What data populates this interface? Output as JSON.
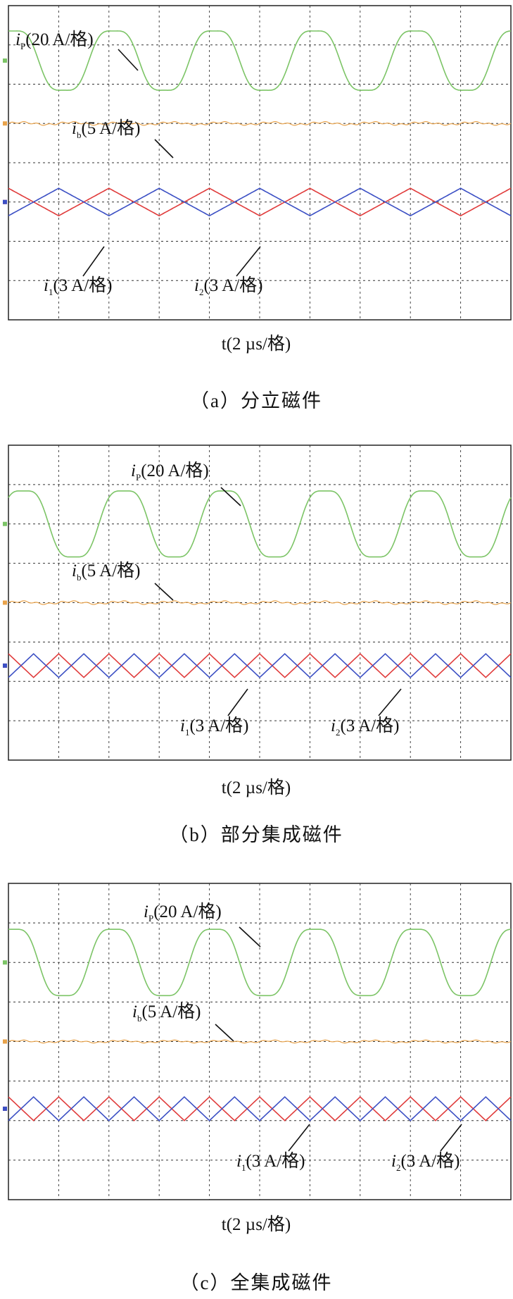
{
  "chart_data": [
    {
      "type": "line",
      "caption": "（a）分立磁件",
      "xlabel": "t(2 µs/格)",
      "grid": true,
      "divisions": {
        "x": 10,
        "y": 8
      },
      "series": [
        {
          "name": "iP(20 A/格)",
          "label_var": "i",
          "label_sub": "P",
          "label_rest": "(20 A/格)",
          "color": "#7cc466",
          "waveform": "sine_notched",
          "amplitude_div": 0.9,
          "offset_div": 1.4,
          "cycles": 5,
          "phase": 0.2
        },
        {
          "name": "ib(5 A/格)",
          "label_var": "i",
          "label_sub": "b",
          "label_rest": "(5 A/格)",
          "color": "#e8a24a",
          "waveform": "ripple",
          "amplitude_div": 0.05,
          "offset_div": 3.0,
          "cycles": 10,
          "phase": 0
        },
        {
          "name": "i1(3 A/格)",
          "label_var": "i",
          "label_sub": "1",
          "label_rest": "(3 A/格)",
          "color": "#e03b3b",
          "waveform": "triangle",
          "amplitude_div": 0.35,
          "offset_div": 5.0,
          "cycles": 5,
          "phase": 0.5
        },
        {
          "name": "i2(3 A/格)",
          "label_var": "i",
          "label_sub": "2",
          "label_rest": "(3 A/格)",
          "color": "#3b4fc4",
          "waveform": "triangle",
          "amplitude_div": 0.35,
          "offset_div": 5.0,
          "cycles": 5,
          "phase": 0
        }
      ]
    },
    {
      "type": "line",
      "caption": "（b）部分集成磁件",
      "xlabel": "t(2 µs/格)",
      "grid": true,
      "divisions": {
        "x": 10,
        "y": 8
      },
      "series": [
        {
          "name": "iP(20 A/格)",
          "label_var": "i",
          "label_sub": "P",
          "label_rest": "(20 A/格)",
          "color": "#7cc466",
          "waveform": "sine_notched",
          "amplitude_div": 1.0,
          "offset_div": 2.0,
          "cycles": 5,
          "phase": 0.1
        },
        {
          "name": "ib(5 A/格)",
          "label_var": "i",
          "label_sub": "b",
          "label_rest": "(5 A/格)",
          "color": "#e8a24a",
          "waveform": "ripple",
          "amplitude_div": 0.05,
          "offset_div": 4.0,
          "cycles": 10,
          "phase": 0
        },
        {
          "name": "i1(3 A/格)",
          "label_var": "i",
          "label_sub": "1",
          "label_rest": "(3 A/格)",
          "color": "#e03b3b",
          "waveform": "triangle",
          "amplitude_div": 0.3,
          "offset_div": 5.6,
          "cycles": 10,
          "phase": 0.5
        },
        {
          "name": "i2(3 A/格)",
          "label_var": "i",
          "label_sub": "2",
          "label_rest": "(3 A/格)",
          "color": "#3b4fc4",
          "waveform": "triangle",
          "amplitude_div": 0.3,
          "offset_div": 5.6,
          "cycles": 10,
          "phase": 0
        }
      ]
    },
    {
      "type": "line",
      "caption": "（c）全集成磁件",
      "xlabel": "t(2 µs/格)",
      "grid": true,
      "divisions": {
        "x": 10,
        "y": 8
      },
      "series": [
        {
          "name": "iP(20 A/格)",
          "label_var": "i",
          "label_sub": "P",
          "label_rest": "(20 A/格)",
          "color": "#7cc466",
          "waveform": "sine_notched",
          "amplitude_div": 1.0,
          "offset_div": 2.0,
          "cycles": 5,
          "phase": 0.2
        },
        {
          "name": "ib(5 A/格)",
          "label_var": "i",
          "label_sub": "b",
          "label_rest": "(5 A/格)",
          "color": "#e8a24a",
          "waveform": "ripple",
          "amplitude_div": 0.04,
          "offset_div": 4.0,
          "cycles": 10,
          "phase": 0
        },
        {
          "name": "i1(3 A/格)",
          "label_var": "i",
          "label_sub": "1",
          "label_rest": "(3 A/格)",
          "color": "#e03b3b",
          "waveform": "triangle",
          "amplitude_div": 0.3,
          "offset_div": 5.7,
          "cycles": 10,
          "phase": 0.5
        },
        {
          "name": "i2(3 A/格)",
          "label_var": "i",
          "label_sub": "2",
          "label_rest": "(3 A/格)",
          "color": "#3b4fc4",
          "waveform": "triangle",
          "amplitude_div": 0.3,
          "offset_div": 5.7,
          "cycles": 10,
          "phase": 0
        }
      ]
    }
  ]
}
